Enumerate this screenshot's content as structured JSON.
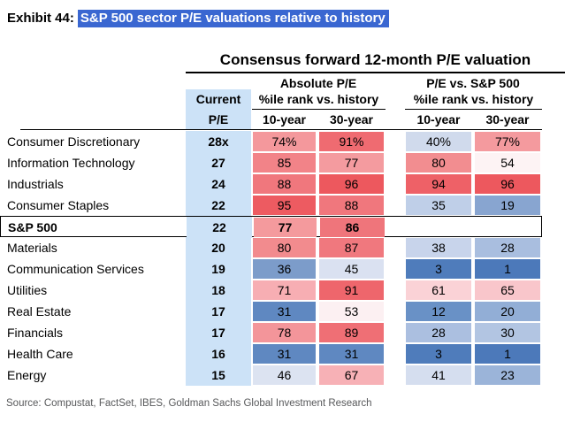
{
  "exhibit": {
    "label": "Exhibit 44:",
    "title": "S&P 500 sector P/E valuations relative to history",
    "highlight_color": "#3a67d1"
  },
  "table": {
    "title": "Consensus forward 12-month P/E valuation",
    "group_headers": {
      "absolute": "Absolute P/E",
      "relative": "P/E vs. S&P 500"
    },
    "sub_headers": {
      "current_line1": "Current",
      "current_line2": "P/E",
      "pct_rank": "%ile rank vs. history",
      "col_10y": "10-year",
      "col_30y": "30-year"
    },
    "header_fill": "#cce2f7",
    "rows": [
      {
        "sector": "Consumer Discretionary",
        "pe": "28x",
        "emphasized": false,
        "cells": [
          {
            "v": "74%",
            "c": "#f4989c"
          },
          {
            "v": "91%",
            "c": "#ef6b71"
          },
          {
            "v": "40%",
            "c": "#d0daec"
          },
          {
            "v": "77%",
            "c": "#f49a9e"
          }
        ]
      },
      {
        "sector": "Information Technology",
        "pe": "27",
        "emphasized": false,
        "cells": [
          {
            "v": "85",
            "c": "#f28388"
          },
          {
            "v": "77",
            "c": "#f49b9f"
          },
          {
            "v": "80",
            "c": "#f28d90"
          },
          {
            "v": "54",
            "c": "#fdf3f4"
          }
        ]
      },
      {
        "sector": "Industrials",
        "pe": "24",
        "emphasized": false,
        "cells": [
          {
            "v": "88",
            "c": "#f0777d"
          },
          {
            "v": "96",
            "c": "#ed585e"
          },
          {
            "v": "94",
            "c": "#ee6167"
          },
          {
            "v": "96",
            "c": "#ed585e"
          }
        ]
      },
      {
        "sector": "Consumer Staples",
        "pe": "22",
        "emphasized": false,
        "cells": [
          {
            "v": "95",
            "c": "#ed5b61"
          },
          {
            "v": "88",
            "c": "#f0777d"
          },
          {
            "v": "35",
            "c": "#bfcfe8"
          },
          {
            "v": "19",
            "c": "#88a5d0"
          }
        ]
      },
      {
        "sector": "S&P 500",
        "pe": "22",
        "emphasized": true,
        "cells": [
          {
            "v": "77",
            "c": "#f49a9d"
          },
          {
            "v": "86",
            "c": "#ef757b"
          },
          {
            "v": "",
            "c": ""
          },
          {
            "v": "",
            "c": ""
          }
        ]
      },
      {
        "sector": "Materials",
        "pe": "20",
        "emphasized": false,
        "cells": [
          {
            "v": "80",
            "c": "#f28b8e"
          },
          {
            "v": "87",
            "c": "#f0787e"
          },
          {
            "v": "38",
            "c": "#c8d4eb"
          },
          {
            "v": "28",
            "c": "#a9bedf"
          }
        ]
      },
      {
        "sector": "Communication Services",
        "pe": "19",
        "emphasized": false,
        "cells": [
          {
            "v": "36",
            "c": "#7c9cca"
          },
          {
            "v": "45",
            "c": "#dae1f1"
          },
          {
            "v": "3",
            "c": "#4f7cbb"
          },
          {
            "v": "1",
            "c": "#4c79ba"
          }
        ]
      },
      {
        "sector": "Utilities",
        "pe": "18",
        "emphasized": false,
        "cells": [
          {
            "v": "71",
            "c": "#f7aeb3"
          },
          {
            "v": "91",
            "c": "#ee666c"
          },
          {
            "v": "61",
            "c": "#fad2d6"
          },
          {
            "v": "65",
            "c": "#f9c6cb"
          }
        ]
      },
      {
        "sector": "Real Estate",
        "pe": "17",
        "emphasized": false,
        "cells": [
          {
            "v": "31",
            "c": "#5f88c1"
          },
          {
            "v": "53",
            "c": "#fcf0f2"
          },
          {
            "v": "12",
            "c": "#6991c6"
          },
          {
            "v": "20",
            "c": "#92aed6"
          }
        ]
      },
      {
        "sector": "Financials",
        "pe": "17",
        "emphasized": false,
        "cells": [
          {
            "v": "78",
            "c": "#f3959a"
          },
          {
            "v": "89",
            "c": "#ef6f75"
          },
          {
            "v": "28",
            "c": "#abbfe0"
          },
          {
            "v": "30",
            "c": "#b2c5e2"
          }
        ]
      },
      {
        "sector": "Health Care",
        "pe": "16",
        "emphasized": false,
        "cells": [
          {
            "v": "31",
            "c": "#5f88c1"
          },
          {
            "v": "31",
            "c": "#5f88c1"
          },
          {
            "v": "3",
            "c": "#4f7cbb"
          },
          {
            "v": "1",
            "c": "#4c79ba"
          }
        ]
      },
      {
        "sector": "Energy",
        "pe": "15",
        "emphasized": false,
        "cells": [
          {
            "v": "46",
            "c": "#dce3f1"
          },
          {
            "v": "67",
            "c": "#f7b1b6"
          },
          {
            "v": "41",
            "c": "#d5deef"
          },
          {
            "v": "23",
            "c": "#9bb4d9"
          }
        ]
      }
    ]
  },
  "source": "Source: Compustat, FactSet, IBES, Goldman Sachs Global Investment Research",
  "chart_data": {
    "type": "heatmap",
    "title": "Consensus forward 12-month P/E valuation",
    "subtitle": "S&P 500 sector P/E valuations relative to history",
    "columns": [
      "Current P/E",
      "Absolute P/E %ile rank vs. history 10-year",
      "Absolute P/E %ile rank vs. history 30-year",
      "P/E vs. S&P 500 %ile rank vs. history 10-year",
      "P/E vs. S&P 500 %ile rank vs. history 30-year"
    ],
    "color_scale": {
      "low": "#4c79ba",
      "mid": "#ffffff",
      "high": "#ed585e",
      "low_value": 0,
      "mid_value": 50,
      "high_value": 100
    },
    "rows": [
      {
        "sector": "Consumer Discretionary",
        "current_pe": 28,
        "abs_10y": 74,
        "abs_30y": 91,
        "rel_10y": 40,
        "rel_30y": 77
      },
      {
        "sector": "Information Technology",
        "current_pe": 27,
        "abs_10y": 85,
        "abs_30y": 77,
        "rel_10y": 80,
        "rel_30y": 54
      },
      {
        "sector": "Industrials",
        "current_pe": 24,
        "abs_10y": 88,
        "abs_30y": 96,
        "rel_10y": 94,
        "rel_30y": 96
      },
      {
        "sector": "Consumer Staples",
        "current_pe": 22,
        "abs_10y": 95,
        "abs_30y": 88,
        "rel_10y": 35,
        "rel_30y": 19
      },
      {
        "sector": "S&P 500",
        "current_pe": 22,
        "abs_10y": 77,
        "abs_30y": 86,
        "rel_10y": null,
        "rel_30y": null
      },
      {
        "sector": "Materials",
        "current_pe": 20,
        "abs_10y": 80,
        "abs_30y": 87,
        "rel_10y": 38,
        "rel_30y": 28
      },
      {
        "sector": "Communication Services",
        "current_pe": 19,
        "abs_10y": 36,
        "abs_30y": 45,
        "rel_10y": 3,
        "rel_30y": 1
      },
      {
        "sector": "Utilities",
        "current_pe": 18,
        "abs_10y": 71,
        "abs_30y": 91,
        "rel_10y": 61,
        "rel_30y": 65
      },
      {
        "sector": "Real Estate",
        "current_pe": 17,
        "abs_10y": 31,
        "abs_30y": 53,
        "rel_10y": 12,
        "rel_30y": 20
      },
      {
        "sector": "Financials",
        "current_pe": 17,
        "abs_10y": 78,
        "abs_30y": 89,
        "rel_10y": 28,
        "rel_30y": 30
      },
      {
        "sector": "Health Care",
        "current_pe": 16,
        "abs_10y": 31,
        "abs_30y": 31,
        "rel_10y": 3,
        "rel_30y": 1
      },
      {
        "sector": "Energy",
        "current_pe": 15,
        "abs_10y": 46,
        "abs_30y": 67,
        "rel_10y": 41,
        "rel_30y": 23
      }
    ]
  }
}
